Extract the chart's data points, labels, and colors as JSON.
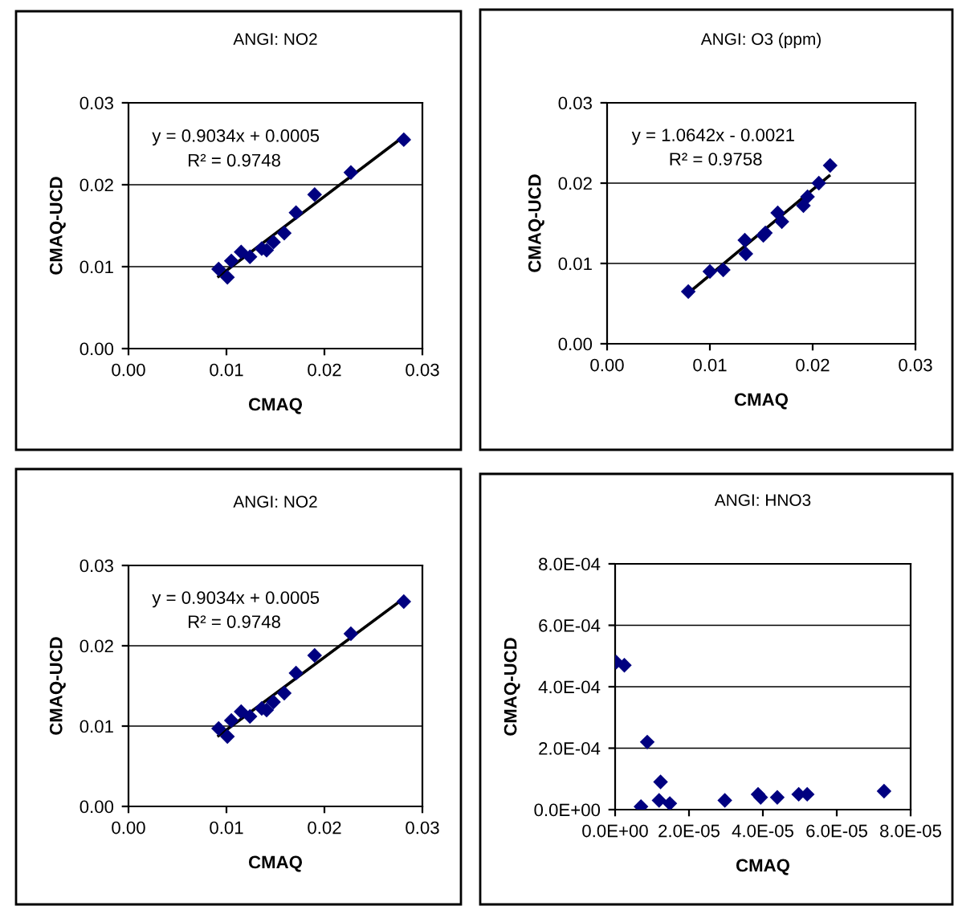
{
  "chart_data": [
    {
      "type": "scatter",
      "title": "ANGI: NO2",
      "xlabel": "CMAQ",
      "ylabel": "CMAQ-UCD",
      "grid": "y",
      "legend": false,
      "series": [
        {
          "type": "scatter",
          "color": "#000080",
          "marker": "diamond",
          "x": [
            0.0092,
            0.0101,
            0.0105,
            0.0115,
            0.0124,
            0.0136,
            0.0141,
            0.0148,
            0.0159,
            0.0171,
            0.019,
            0.0227,
            0.0281
          ],
          "values": [
            0.0097,
            0.0087,
            0.0107,
            0.0118,
            0.0112,
            0.0122,
            0.012,
            0.013,
            0.0141,
            0.0166,
            0.0188,
            0.0215,
            0.0255
          ]
        },
        {
          "type": "line",
          "color": "#000000",
          "marker": "none",
          "line_style": "solid",
          "x": [
            0.0092,
            0.0281
          ],
          "values": [
            0.0088,
            0.0259
          ]
        }
      ],
      "xlim": [
        0,
        0.03
      ],
      "ylim": [
        0,
        0.03
      ],
      "xticks": [
        {
          "value": 0,
          "label": "0.00"
        },
        {
          "value": 0.01,
          "label": "0.01"
        },
        {
          "value": 0.02,
          "label": "0.02"
        },
        {
          "value": 0.03,
          "label": "0.03"
        }
      ],
      "yticks": [
        {
          "value": 0,
          "label": "0.00"
        },
        {
          "value": 0.01,
          "label": "0.01"
        },
        {
          "value": 0.02,
          "label": "0.02"
        },
        {
          "value": 0.03,
          "label": "0.03"
        }
      ],
      "annotations": [
        "y = 0.9034x + 0.0005",
        "R² = 0.9748"
      ]
    },
    {
      "type": "scatter",
      "title": "ANGI: O3 (ppm)",
      "xlabel": "CMAQ",
      "ylabel": "CMAQ-UCD",
      "grid": "y",
      "legend": false,
      "series": [
        {
          "type": "scatter",
          "color": "#000080",
          "marker": "diamond",
          "x": [
            0.0079,
            0.01,
            0.0113,
            0.0134,
            0.0135,
            0.0152,
            0.0154,
            0.0166,
            0.017,
            0.0191,
            0.0195,
            0.0206,
            0.0217
          ],
          "values": [
            0.0065,
            0.009,
            0.0092,
            0.0129,
            0.0112,
            0.0135,
            0.0138,
            0.0163,
            0.0152,
            0.0172,
            0.0183,
            0.02,
            0.0222
          ]
        },
        {
          "type": "line",
          "color": "#000000",
          "marker": "none",
          "line_style": "solid",
          "x": [
            0.0079,
            0.0216
          ],
          "values": [
            0.0063,
            0.0209
          ]
        }
      ],
      "xlim": [
        0,
        0.03
      ],
      "ylim": [
        0,
        0.03
      ],
      "xticks": [
        {
          "value": 0,
          "label": "0.00"
        },
        {
          "value": 0.01,
          "label": "0.01"
        },
        {
          "value": 0.02,
          "label": "0.02"
        },
        {
          "value": 0.03,
          "label": "0.03"
        }
      ],
      "yticks": [
        {
          "value": 0,
          "label": "0.00"
        },
        {
          "value": 0.01,
          "label": "0.01"
        },
        {
          "value": 0.02,
          "label": "0.02"
        },
        {
          "value": 0.03,
          "label": "0.03"
        }
      ],
      "annotations": [
        "y = 1.0642x - 0.0021",
        "R² = 0.9758"
      ]
    },
    {
      "type": "scatter",
      "title": "ANGI: NO2",
      "xlabel": "CMAQ",
      "ylabel": "CMAQ-UCD",
      "grid": "y",
      "legend": false,
      "series": [
        {
          "type": "scatter",
          "color": "#000080",
          "marker": "diamond",
          "x": [
            0.0092,
            0.0101,
            0.0105,
            0.0115,
            0.0124,
            0.0136,
            0.0141,
            0.0148,
            0.0159,
            0.0171,
            0.019,
            0.0227,
            0.0281
          ],
          "values": [
            0.0097,
            0.0087,
            0.0107,
            0.0118,
            0.0112,
            0.0122,
            0.012,
            0.013,
            0.0141,
            0.0166,
            0.0188,
            0.0215,
            0.0255
          ]
        },
        {
          "type": "line",
          "color": "#000000",
          "marker": "none",
          "line_style": "solid",
          "x": [
            0.0092,
            0.0281
          ],
          "values": [
            0.0088,
            0.0259
          ]
        }
      ],
      "xlim": [
        0,
        0.03
      ],
      "ylim": [
        0,
        0.03
      ],
      "xticks": [
        {
          "value": 0,
          "label": "0.00"
        },
        {
          "value": 0.01,
          "label": "0.01"
        },
        {
          "value": 0.02,
          "label": "0.02"
        },
        {
          "value": 0.03,
          "label": "0.03"
        }
      ],
      "yticks": [
        {
          "value": 0,
          "label": "0.00"
        },
        {
          "value": 0.01,
          "label": "0.01"
        },
        {
          "value": 0.02,
          "label": "0.02"
        },
        {
          "value": 0.03,
          "label": "0.03"
        }
      ],
      "annotations": [
        "y = 0.9034x + 0.0005",
        "R² = 0.9748"
      ]
    },
    {
      "type": "scatter",
      "title": "ANGI: HNO3",
      "xlabel": "CMAQ",
      "ylabel": "CMAQ-UCD",
      "grid": "y",
      "legend": false,
      "series": [
        {
          "color": "#000080",
          "marker": "diamond",
          "x": [
            3e-07,
            2.5e-06,
            8.7e-06,
            7e-06,
            1.19e-05,
            1.23e-05,
            1.48e-05,
            2.97e-05,
            3.87e-05,
            3.94e-05,
            4.39e-05,
            4.97e-05,
            5.2e-05,
            7.28e-05
          ],
          "values": [
            0.00048,
            0.00047,
            0.00022,
            1e-05,
            3e-05,
            9e-05,
            2e-05,
            3e-05,
            5e-05,
            4e-05,
            4e-05,
            5e-05,
            5e-05,
            6e-05
          ]
        }
      ],
      "xlim": [
        0,
        8e-05
      ],
      "ylim": [
        0,
        0.0008
      ],
      "xticks": [
        {
          "value": 0,
          "label": "0.0E+00"
        },
        {
          "value": 2e-05,
          "label": "2.0E-05"
        },
        {
          "value": 4e-05,
          "label": "4.0E-05"
        },
        {
          "value": 6e-05,
          "label": "6.0E-05"
        },
        {
          "value": 8e-05,
          "label": "8.0E-05"
        }
      ],
      "yticks": [
        {
          "value": 0,
          "label": "0.0E+00"
        },
        {
          "value": 0.0002,
          "label": "2.0E-04"
        },
        {
          "value": 0.0004,
          "label": "4.0E-04"
        },
        {
          "value": 0.0006,
          "label": "6.0E-04"
        },
        {
          "value": 0.0008,
          "label": "8.0E-04"
        }
      ]
    }
  ]
}
